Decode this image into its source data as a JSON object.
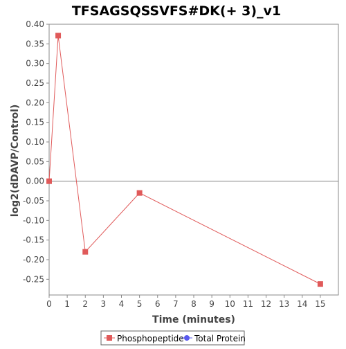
{
  "chart_data": {
    "type": "line",
    "title": "TFSAGSQSSVFS#DK(+ 3)_v1",
    "xlabel": "Time (minutes)",
    "ylabel": "log2(dDAVP/Control)",
    "xlim": [
      0,
      16
    ],
    "ylim": [
      -0.29,
      0.4
    ],
    "x_ticks": [
      "0",
      "1",
      "2",
      "3",
      "4",
      "5",
      "6",
      "7",
      "8",
      "9",
      "10",
      "11",
      "12",
      "13",
      "14",
      "15"
    ],
    "y_ticks": [
      "0.40",
      "0.35",
      "0.30",
      "0.25",
      "0.20",
      "0.15",
      "0.10",
      "0.05",
      "0.00",
      "-0.05",
      "-0.10",
      "-0.15",
      "-0.20",
      "-0.25"
    ],
    "grid": false,
    "zero_line": true,
    "legend_position": "bottom-center",
    "series": [
      {
        "name": "Phosphopeptide",
        "color": "#e05a5a",
        "marker": "square",
        "x": [
          0,
          0.5,
          2,
          5,
          15
        ],
        "y": [
          0.0,
          0.371,
          -0.18,
          -0.03,
          -0.262
        ]
      },
      {
        "name": "Total Protein",
        "color": "#5a5aee",
        "marker": "circle",
        "x": [],
        "y": []
      }
    ]
  }
}
